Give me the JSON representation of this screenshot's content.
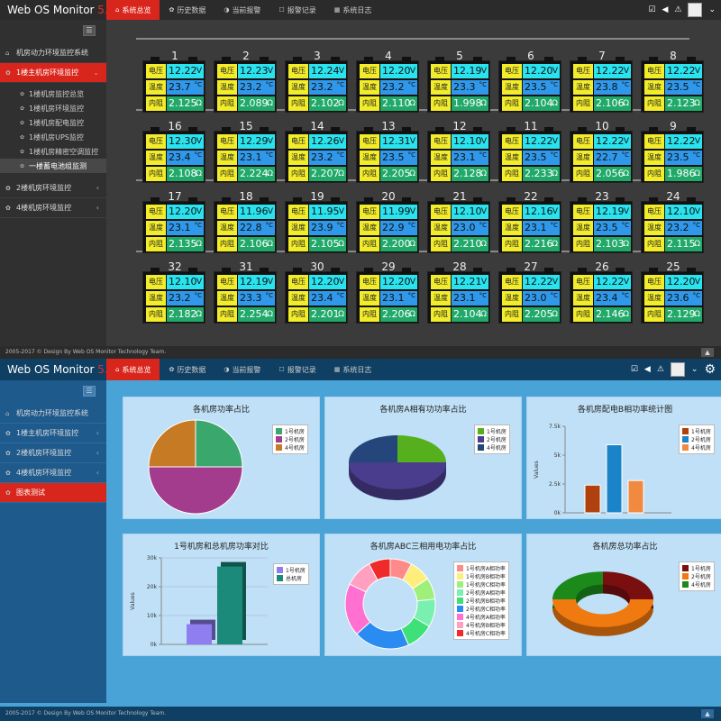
{
  "top": {
    "logo": "Web OS Monitor",
    "version": "5.0",
    "tabs": [
      "系统总览",
      "历史数据",
      "当前报警",
      "报警记录",
      "系统日志"
    ]
  },
  "sidebar1": {
    "system": "机房动力环境监控系统",
    "floor1": "1楼主机房环境监控",
    "subs": [
      "1楼机房监控总览",
      "1楼机房环境监控",
      "1楼机房配电监控",
      "1楼机房UPS监控",
      "1楼机房精密空调监控",
      "一楼蓄电池组监测"
    ],
    "floor2": "2楼机房环境监控",
    "floor4": "4楼机房环境监控"
  },
  "sidebar2": {
    "system": "机房动力环境监控系统",
    "floor1": "1楼主机房环境监控",
    "floor2": "2楼机房环境监控",
    "floor4": "4楼机房环境监控",
    "charts": "图表测试"
  },
  "footer": "2005-2017 © Design By Web OS Monitor Technology Team.",
  "labels": {
    "voltage": "电压",
    "temp": "温度",
    "res": "内阻",
    "v_unit": "V",
    "t_unit": "°C",
    "r_unit": "Ω"
  },
  "batteries": [
    {
      "n": "1",
      "v": "12.22",
      "t": "23.7",
      "r": "2.125"
    },
    {
      "n": "2",
      "v": "12.23",
      "t": "23.2",
      "r": "2.089"
    },
    {
      "n": "3",
      "v": "12.24",
      "t": "23.2",
      "r": "2.102"
    },
    {
      "n": "4",
      "v": "12.20",
      "t": "23.2",
      "r": "2.110"
    },
    {
      "n": "5",
      "v": "12.19",
      "t": "23.3",
      "r": "1.998"
    },
    {
      "n": "6",
      "v": "12.20",
      "t": "23.5",
      "r": "2.104"
    },
    {
      "n": "7",
      "v": "12.22",
      "t": "23.8",
      "r": "2.106"
    },
    {
      "n": "8",
      "v": "12.22",
      "t": "23.5",
      "r": "2.123"
    },
    {
      "n": "16",
      "v": "12.30",
      "t": "23.4",
      "r": "2.108"
    },
    {
      "n": "15",
      "v": "12.29",
      "t": "23.1",
      "r": "2.224"
    },
    {
      "n": "14",
      "v": "12.26",
      "t": "23.2",
      "r": "2.207"
    },
    {
      "n": "13",
      "v": "12.31",
      "t": "23.5",
      "r": "2.205"
    },
    {
      "n": "12",
      "v": "12.10",
      "t": "23.1",
      "r": "2.128"
    },
    {
      "n": "11",
      "v": "12.22",
      "t": "23.5",
      "r": "2.233"
    },
    {
      "n": "10",
      "v": "12.22",
      "t": "22.7",
      "r": "2.056"
    },
    {
      "n": "9",
      "v": "12.22",
      "t": "23.5",
      "r": "1.986"
    },
    {
      "n": "17",
      "v": "12.20",
      "t": "23.1",
      "r": "2.135"
    },
    {
      "n": "18",
      "v": "11.96",
      "t": "22.8",
      "r": "2.106"
    },
    {
      "n": "19",
      "v": "11.95",
      "t": "23.9",
      "r": "2.105"
    },
    {
      "n": "20",
      "v": "11.99",
      "t": "22.9",
      "r": "2.200"
    },
    {
      "n": "21",
      "v": "12.10",
      "t": "23.0",
      "r": "2.210"
    },
    {
      "n": "22",
      "v": "12.16",
      "t": "23.1",
      "r": "2.216"
    },
    {
      "n": "23",
      "v": "12.19",
      "t": "23.5",
      "r": "2.103"
    },
    {
      "n": "24",
      "v": "12.10",
      "t": "23.2",
      "r": "2.115"
    },
    {
      "n": "32",
      "v": "12.10",
      "t": "23.2",
      "r": "2.182"
    },
    {
      "n": "31",
      "v": "12.19",
      "t": "23.3",
      "r": "2.254"
    },
    {
      "n": "30",
      "v": "12.20",
      "t": "23.4",
      "r": "2.201"
    },
    {
      "n": "29",
      "v": "12.20",
      "t": "23.1",
      "r": "2.206"
    },
    {
      "n": "28",
      "v": "12.21",
      "t": "23.1",
      "r": "2.104"
    },
    {
      "n": "27",
      "v": "12.22",
      "t": "23.0",
      "r": "2.205"
    },
    {
      "n": "26",
      "v": "12.22",
      "t": "23.4",
      "r": "2.146"
    },
    {
      "n": "25",
      "v": "12.20",
      "t": "23.6",
      "r": "2.129"
    }
  ],
  "chart_data": [
    {
      "type": "pie",
      "title": "各机房功率占比",
      "categories": [
        "1号机房",
        "2号机房",
        "4号机房"
      ],
      "values": [
        25,
        50,
        25
      ],
      "colors": [
        "#3aa76d",
        "#a43c8e",
        "#c67a24"
      ]
    },
    {
      "type": "pie",
      "title": "各机房A相有功功率占比",
      "categories": [
        "1号机房",
        "2号机房",
        "4号机房"
      ],
      "values": [
        25,
        50,
        25
      ],
      "colors": [
        "#56b01e",
        "#4b3d8d",
        "#24467a"
      ]
    },
    {
      "type": "bar",
      "title": "各机房配电B相功率统计图",
      "categories": [
        "1号机房",
        "2号机房",
        "4号机房"
      ],
      "values": [
        2400,
        5900,
        2800
      ],
      "colors": [
        "#b0400e",
        "#1b84c9",
        "#f08a40"
      ],
      "ylabel": "Values",
      "yticks": [
        "0k",
        "2.5k",
        "5k",
        "7.5k"
      ],
      "ylim": [
        0,
        7500
      ]
    },
    {
      "type": "bar",
      "title": "1号机房和总机房功率对比",
      "categories": [
        "1号机房",
        "总机房"
      ],
      "values": [
        7000,
        27000
      ],
      "colors": [
        "#8f7ef0",
        "#1b8a7a"
      ],
      "ylabel": "Values",
      "yticks": [
        "0k",
        "10k",
        "20k",
        "30k"
      ],
      "ylim": [
        0,
        30000
      ]
    },
    {
      "type": "pie",
      "title": "各机房ABC三相用电功率占比",
      "categories": [
        "1号机房A相功率",
        "1号机房B相功率",
        "1号机房C相功率",
        "2号机房A相功率",
        "2号机房B相功率",
        "2号机房C相功率",
        "4号机房A相功率",
        "4号机房B相功率",
        "4号机房C相功率"
      ],
      "values": [
        7,
        7,
        7,
        9,
        9,
        18,
        17,
        9,
        7
      ],
      "colors": [
        "#ff8a8a",
        "#ffee7a",
        "#9ff07a",
        "#7af0b0",
        "#3ee07a",
        "#2a8cf0",
        "#ff70d0",
        "#ffa0c0",
        "#f02a2a"
      ]
    },
    {
      "type": "pie",
      "title": "各机房总功率占比",
      "categories": [
        "1号机房",
        "2号机房",
        "4号机房"
      ],
      "values": [
        25,
        50,
        25
      ],
      "colors": [
        "#7a0f0f",
        "#f07a10",
        "#1b8a1b"
      ]
    }
  ]
}
